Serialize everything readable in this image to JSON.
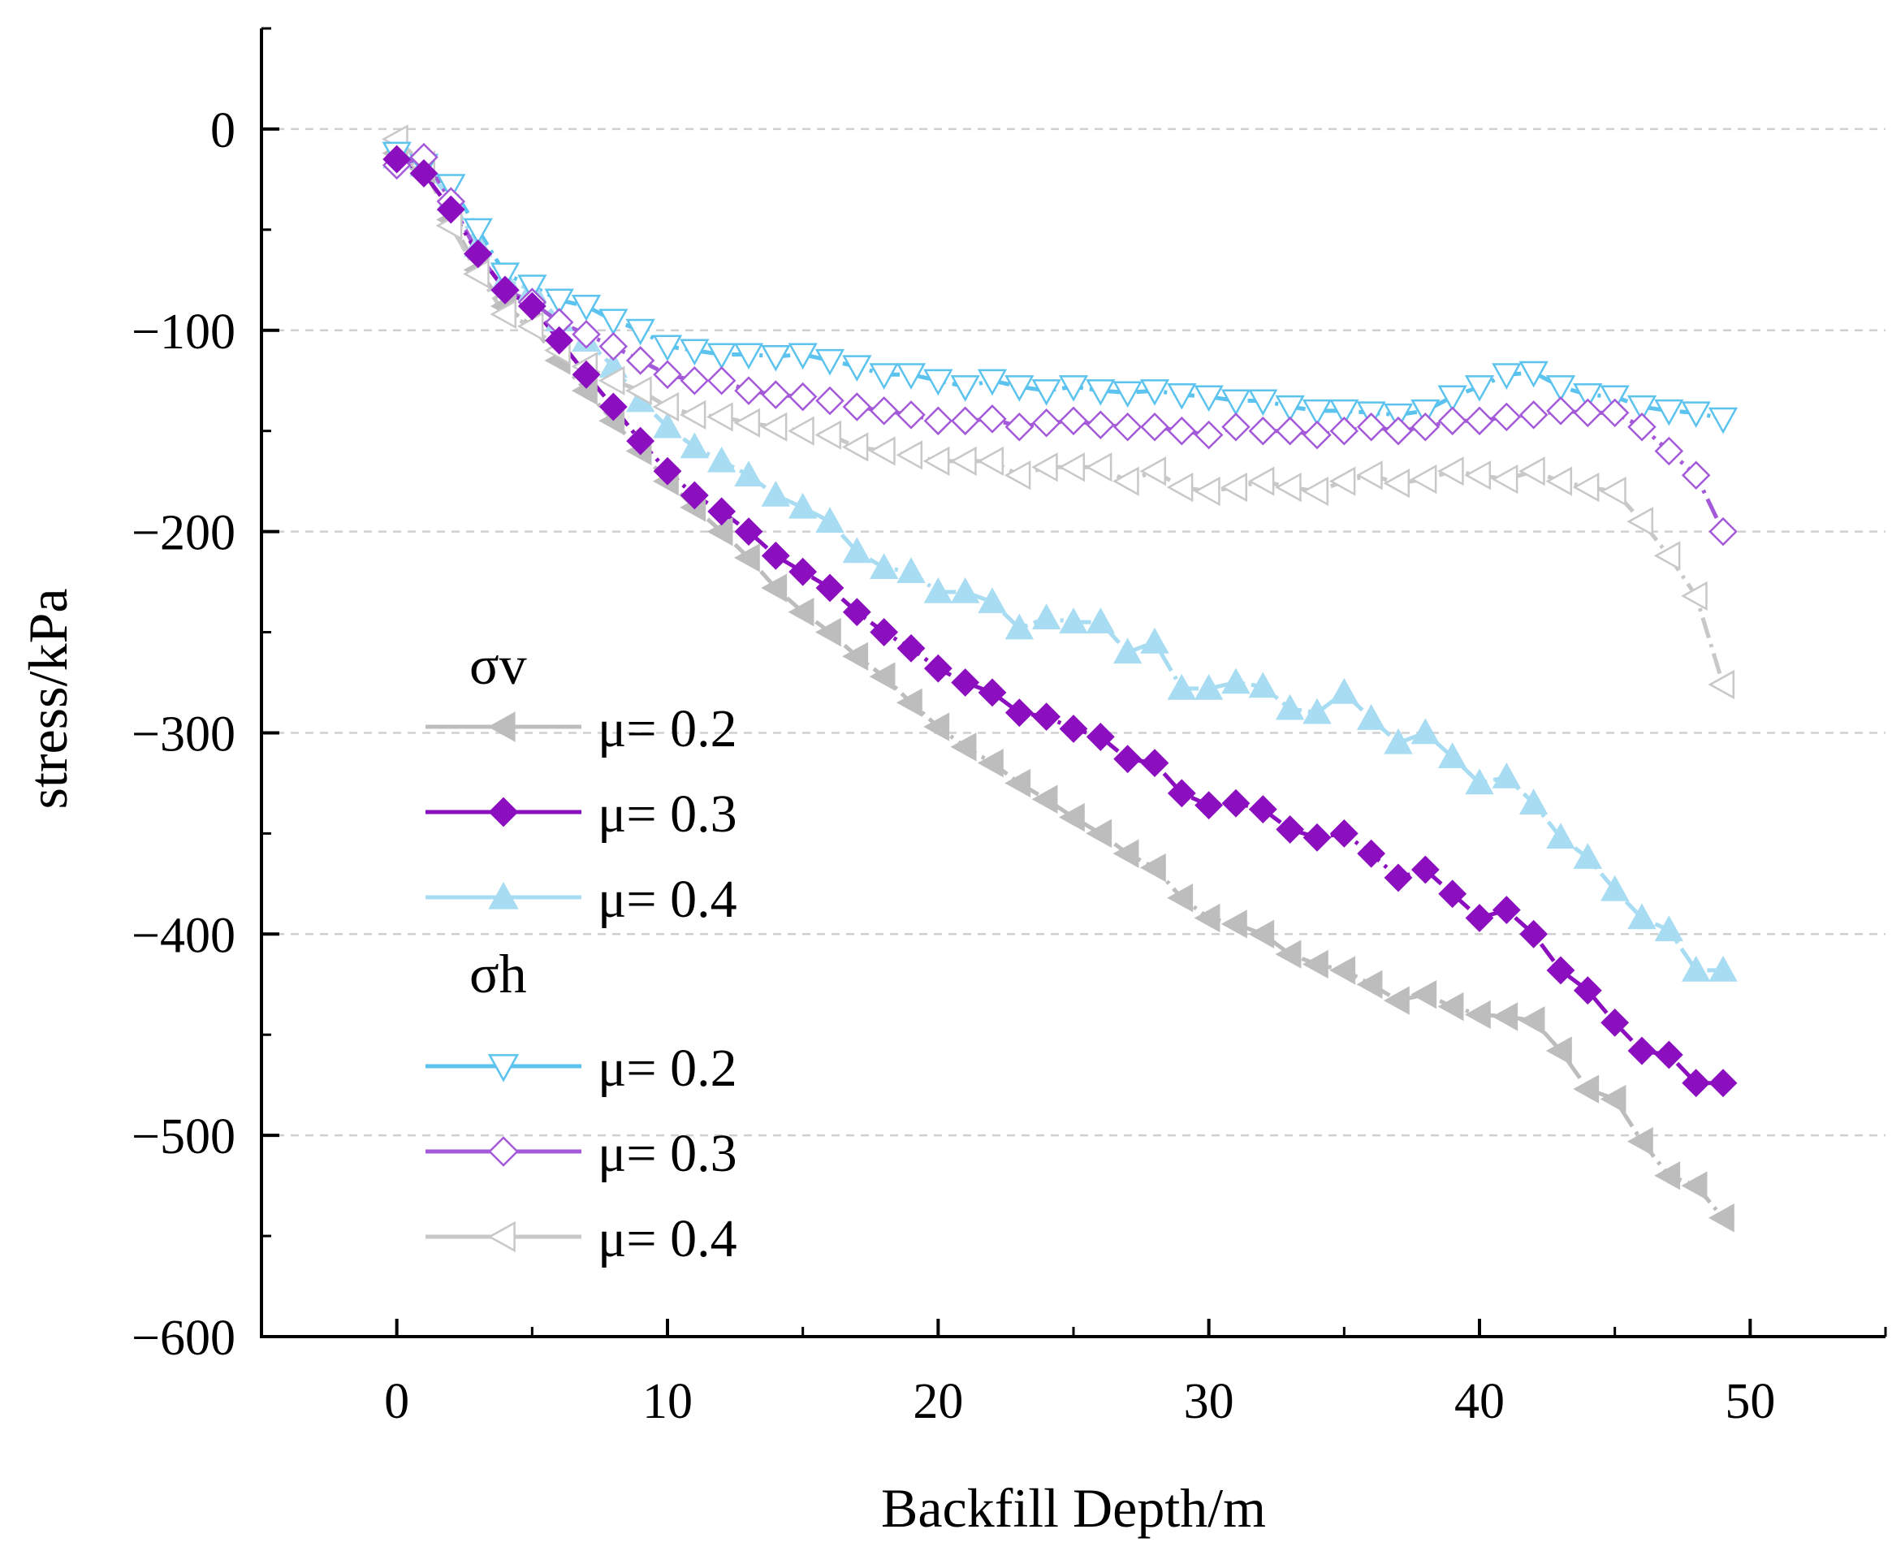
{
  "chart_data": {
    "type": "line",
    "title": "",
    "xlabel": "Backfill Depth/m",
    "ylabel": "stress/kPa",
    "xlim": [
      -5,
      55
    ],
    "ylim": [
      -600,
      50
    ],
    "xticks": [
      0,
      10,
      20,
      30,
      40,
      50
    ],
    "yticks": [
      0,
      -100,
      -200,
      -300,
      -400,
      -500,
      -600
    ],
    "xtick_labels": [
      "0",
      "10",
      "20",
      "30",
      "40",
      "50"
    ],
    "ytick_labels": [
      "0",
      "−100",
      "−200",
      "−300",
      "−400",
      "−500",
      "−600"
    ],
    "grid": "horizontal dashed",
    "legend": {
      "position": "left",
      "groups": [
        {
          "title": "σv",
          "entries": [
            "μ= 0.2",
            "μ= 0.3",
            "μ= 0.4"
          ]
        },
        {
          "title": "σh",
          "entries": [
            "μ= 0.2",
            "μ= 0.3",
            "μ= 0.4"
          ]
        }
      ]
    },
    "series": [
      {
        "id": "sv02",
        "name": "σv μ= 0.2",
        "color": "#bdbdbd",
        "marker": "triangle-left",
        "filled": true,
        "dash": "dashdot",
        "x": [
          0,
          1,
          2,
          3,
          4,
          5,
          6,
          7,
          8,
          9,
          10,
          11,
          12,
          13,
          14,
          15,
          16,
          17,
          18,
          19,
          20,
          21,
          22,
          23,
          24,
          25,
          26,
          27,
          28,
          29,
          30,
          31,
          32,
          33,
          34,
          35,
          36,
          37,
          38,
          39,
          40,
          41,
          42,
          43,
          44,
          45,
          46,
          47,
          48,
          49
        ],
        "y": [
          -12,
          -20,
          -45,
          -70,
          -88,
          -98,
          -115,
          -130,
          -145,
          -160,
          -175,
          -188,
          -200,
          -213,
          -228,
          -240,
          -250,
          -262,
          -272,
          -285,
          -297,
          -307,
          -315,
          -325,
          -333,
          -342,
          -350,
          -360,
          -367,
          -382,
          -392,
          -395,
          -400,
          -410,
          -415,
          -418,
          -425,
          -433,
          -430,
          -436,
          -440,
          -441,
          -443,
          -458,
          -477,
          -482,
          -503,
          -520,
          -525,
          -541
        ]
      },
      {
        "id": "sv03",
        "name": "σv μ= 0.3",
        "color": "#8b0fbf",
        "marker": "diamond",
        "filled": true,
        "dash": "dashdot",
        "x": [
          0,
          1,
          2,
          3,
          4,
          5,
          6,
          7,
          8,
          9,
          10,
          11,
          12,
          13,
          14,
          15,
          16,
          17,
          18,
          19,
          20,
          21,
          22,
          23,
          24,
          25,
          26,
          27,
          28,
          29,
          30,
          31,
          32,
          33,
          34,
          35,
          36,
          37,
          38,
          39,
          40,
          41,
          42,
          43,
          44,
          45,
          46,
          47,
          48,
          49
        ],
        "y": [
          -15,
          -22,
          -40,
          -62,
          -80,
          -88,
          -105,
          -122,
          -138,
          -155,
          -170,
          -182,
          -190,
          -200,
          -212,
          -220,
          -228,
          -240,
          -250,
          -258,
          -268,
          -275,
          -280,
          -290,
          -292,
          -298,
          -302,
          -313,
          -315,
          -330,
          -336,
          -335,
          -338,
          -348,
          -352,
          -350,
          -360,
          -372,
          -368,
          -380,
          -392,
          -388,
          -400,
          -418,
          -428,
          -444,
          -458,
          -460,
          -474,
          -474
        ]
      },
      {
        "id": "sv04",
        "name": "σv μ= 0.4",
        "color": "#a7dcf2",
        "marker": "triangle-up",
        "filled": true,
        "dash": "dashdot",
        "x": [
          0,
          1,
          2,
          3,
          4,
          5,
          6,
          7,
          8,
          9,
          10,
          11,
          12,
          13,
          14,
          15,
          16,
          17,
          18,
          19,
          20,
          21,
          22,
          23,
          24,
          25,
          26,
          27,
          28,
          29,
          30,
          31,
          32,
          33,
          34,
          35,
          36,
          37,
          38,
          39,
          40,
          41,
          42,
          43,
          44,
          45,
          46,
          47,
          48,
          49
        ],
        "y": [
          -14,
          -18,
          -35,
          -58,
          -75,
          -80,
          -95,
          -105,
          -118,
          -135,
          -148,
          -158,
          -165,
          -172,
          -182,
          -188,
          -195,
          -210,
          -218,
          -220,
          -230,
          -230,
          -235,
          -248,
          -243,
          -245,
          -245,
          -260,
          -255,
          -278,
          -278,
          -275,
          -277,
          -288,
          -290,
          -280,
          -293,
          -305,
          -300,
          -312,
          -325,
          -322,
          -335,
          -352,
          -362,
          -378,
          -392,
          -398,
          -418,
          -418
        ]
      },
      {
        "id": "sh02",
        "name": "σh μ= 0.2",
        "color": "#5bc3ee",
        "marker": "triangle-down",
        "filled": false,
        "dash": "dashdot",
        "x": [
          0,
          1,
          2,
          3,
          4,
          5,
          6,
          7,
          8,
          9,
          10,
          11,
          12,
          13,
          14,
          15,
          16,
          17,
          18,
          19,
          20,
          21,
          22,
          23,
          24,
          25,
          26,
          27,
          28,
          29,
          30,
          31,
          32,
          33,
          34,
          35,
          36,
          37,
          38,
          39,
          40,
          41,
          42,
          43,
          44,
          45,
          46,
          47,
          48,
          49
        ],
        "y": [
          -12,
          -18,
          -28,
          -50,
          -72,
          -78,
          -85,
          -88,
          -95,
          -100,
          -108,
          -110,
          -112,
          -112,
          -113,
          -112,
          -115,
          -118,
          -122,
          -122,
          -125,
          -128,
          -125,
          -128,
          -130,
          -128,
          -130,
          -131,
          -130,
          -132,
          -133,
          -135,
          -135,
          -138,
          -140,
          -140,
          -141,
          -142,
          -140,
          -133,
          -128,
          -122,
          -121,
          -128,
          -132,
          -133,
          -138,
          -140,
          -141,
          -144
        ]
      },
      {
        "id": "sh03",
        "name": "σh μ= 0.3",
        "color": "#a45ad8",
        "marker": "diamond",
        "filled": false,
        "dash": "dashdot",
        "x": [
          0,
          1,
          2,
          3,
          4,
          5,
          6,
          7,
          8,
          9,
          10,
          11,
          12,
          13,
          14,
          15,
          16,
          17,
          18,
          19,
          20,
          21,
          22,
          23,
          24,
          25,
          26,
          27,
          28,
          29,
          30,
          31,
          32,
          33,
          34,
          35,
          36,
          37,
          38,
          39,
          40,
          41,
          42,
          43,
          44,
          45,
          46,
          47,
          48,
          49
        ],
        "y": [
          -18,
          -14,
          -36,
          -62,
          -80,
          -86,
          -96,
          -102,
          -108,
          -115,
          -122,
          -125,
          -125,
          -130,
          -132,
          -133,
          -135,
          -138,
          -140,
          -142,
          -145,
          -145,
          -144,
          -148,
          -146,
          -145,
          -147,
          -148,
          -148,
          -150,
          -152,
          -148,
          -150,
          -150,
          -152,
          -150,
          -148,
          -150,
          -148,
          -145,
          -145,
          -143,
          -142,
          -140,
          -141,
          -141,
          -148,
          -160,
          -172,
          -200
        ]
      },
      {
        "id": "sh04",
        "name": "σh μ= 0.4",
        "color": "#c8c8c8",
        "marker": "triangle-left",
        "filled": false,
        "dash": "dashdot",
        "x": [
          0,
          1,
          2,
          3,
          4,
          5,
          6,
          7,
          8,
          9,
          10,
          11,
          12,
          13,
          14,
          15,
          16,
          17,
          18,
          19,
          20,
          21,
          22,
          23,
          24,
          25,
          26,
          27,
          28,
          29,
          30,
          31,
          32,
          33,
          34,
          35,
          36,
          37,
          38,
          39,
          40,
          41,
          42,
          43,
          44,
          45,
          46,
          47,
          48,
          49
        ],
        "y": [
          -5,
          -18,
          -48,
          -72,
          -92,
          -98,
          -110,
          -118,
          -125,
          -130,
          -138,
          -142,
          -143,
          -146,
          -148,
          -150,
          -152,
          -158,
          -160,
          -162,
          -165,
          -165,
          -165,
          -172,
          -168,
          -168,
          -168,
          -175,
          -170,
          -178,
          -180,
          -178,
          -175,
          -178,
          -180,
          -175,
          -172,
          -176,
          -174,
          -170,
          -172,
          -174,
          -170,
          -175,
          -178,
          -180,
          -195,
          -212,
          -232,
          -276
        ]
      }
    ]
  }
}
